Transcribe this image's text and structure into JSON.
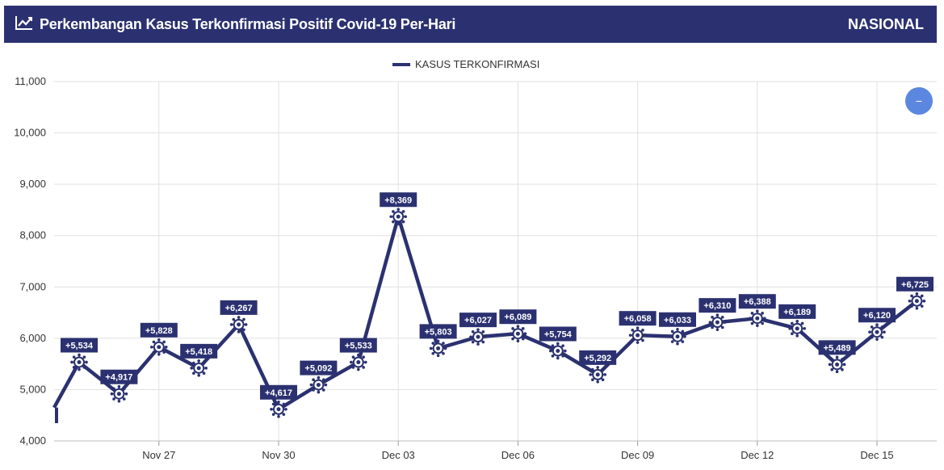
{
  "header": {
    "title": "Perkembangan Kasus Terkonfirmasi Positif Covid-19 Per-Hari",
    "region": "NASIONAL",
    "icon": "line-chart-icon"
  },
  "zoom_button": {
    "label": "−",
    "icon": "zoom-out-icon"
  },
  "colors": {
    "header_bg": "#2b3170",
    "series": "#2b3170",
    "zoom_button": "#5b87e0",
    "grid": "#e0e0e0"
  },
  "chart_data": {
    "type": "line",
    "title": "",
    "xlabel": "",
    "ylabel": "",
    "ylim": [
      4000,
      11000
    ],
    "y_ticks": [
      4000,
      5000,
      6000,
      7000,
      8000,
      9000,
      10000,
      11000
    ],
    "y_tick_labels": [
      "4,000",
      "5,000",
      "6,000",
      "7,000",
      "8,000",
      "9,000",
      "10,000",
      "11,000"
    ],
    "x_ticks": [
      "Nov 27",
      "Nov 30",
      "Dec 03",
      "Dec 06",
      "Dec 09",
      "Dec 12",
      "Dec 15"
    ],
    "grid": true,
    "legend_position": "top-center",
    "series": [
      {
        "name": "KASUS TERKONFIRMASI",
        "x": [
          "Nov 25",
          "Nov 26",
          "Nov 27",
          "Nov 28",
          "Nov 29",
          "Nov 30",
          "Dec 01",
          "Dec 02",
          "Dec 03",
          "Dec 04",
          "Dec 05",
          "Dec 06",
          "Dec 07",
          "Dec 08",
          "Dec 09",
          "Dec 10",
          "Dec 11",
          "Dec 12",
          "Dec 13",
          "Dec 14",
          "Dec 15",
          "Dec 16"
        ],
        "values": [
          5534,
          4917,
          5828,
          5418,
          6267,
          4617,
          5092,
          5533,
          8369,
          5803,
          6027,
          6089,
          5754,
          5292,
          6058,
          6033,
          6310,
          6388,
          6189,
          5489,
          6120,
          6725
        ],
        "labels": [
          "+5,534",
          "+4,917",
          "+5,828",
          "+5,418",
          "+6,267",
          "+4,617",
          "+5,092",
          "+5,533",
          "+8,369",
          "+5,803",
          "+6,027",
          "+6,089",
          "+5,754",
          "+5,292",
          "+6,058",
          "+6,033",
          "+6,310",
          "+6,388",
          "+6,189",
          "+5,489",
          "+6,120",
          "+6,725"
        ],
        "marker": "virus-icon"
      }
    ]
  }
}
